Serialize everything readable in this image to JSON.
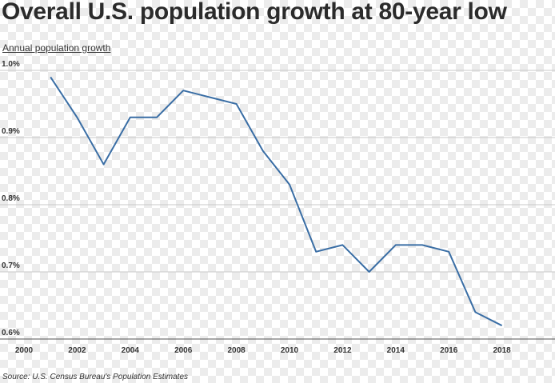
{
  "title": "Overall U.S. population growth at 80-year low",
  "subtitle": "Annual population growth",
  "source": "Source: U.S. Census Bureau's Population Estimates",
  "colors": {
    "line": "#3a6ea5",
    "grid": "#c8c8c8"
  },
  "chart_data": {
    "type": "line",
    "title": "Overall U.S. population growth at 80-year low",
    "ylabel": "Annual population growth",
    "xlim": [
      2000,
      2020
    ],
    "ylim": [
      0.6,
      1.0
    ],
    "grid": true,
    "x_ticks": [
      "2000",
      "2002",
      "2004",
      "2006",
      "2008",
      "2010",
      "2012",
      "2014",
      "2016",
      "2018"
    ],
    "y_ticks": [
      "0.6%",
      "0.7%",
      "0.8%",
      "0.9%",
      "1.0%"
    ],
    "series": [
      {
        "x": [
          2001,
          2002,
          2003,
          2004,
          2005,
          2006,
          2007,
          2008,
          2009,
          2010,
          2011,
          2012,
          2013,
          2014,
          2015,
          2016,
          2017,
          2018
        ],
        "values": [
          0.99,
          0.93,
          0.86,
          0.93,
          0.93,
          0.97,
          0.96,
          0.95,
          0.88,
          0.83,
          0.73,
          0.74,
          0.7,
          0.74,
          0.74,
          0.73,
          0.64,
          0.62
        ]
      }
    ]
  }
}
